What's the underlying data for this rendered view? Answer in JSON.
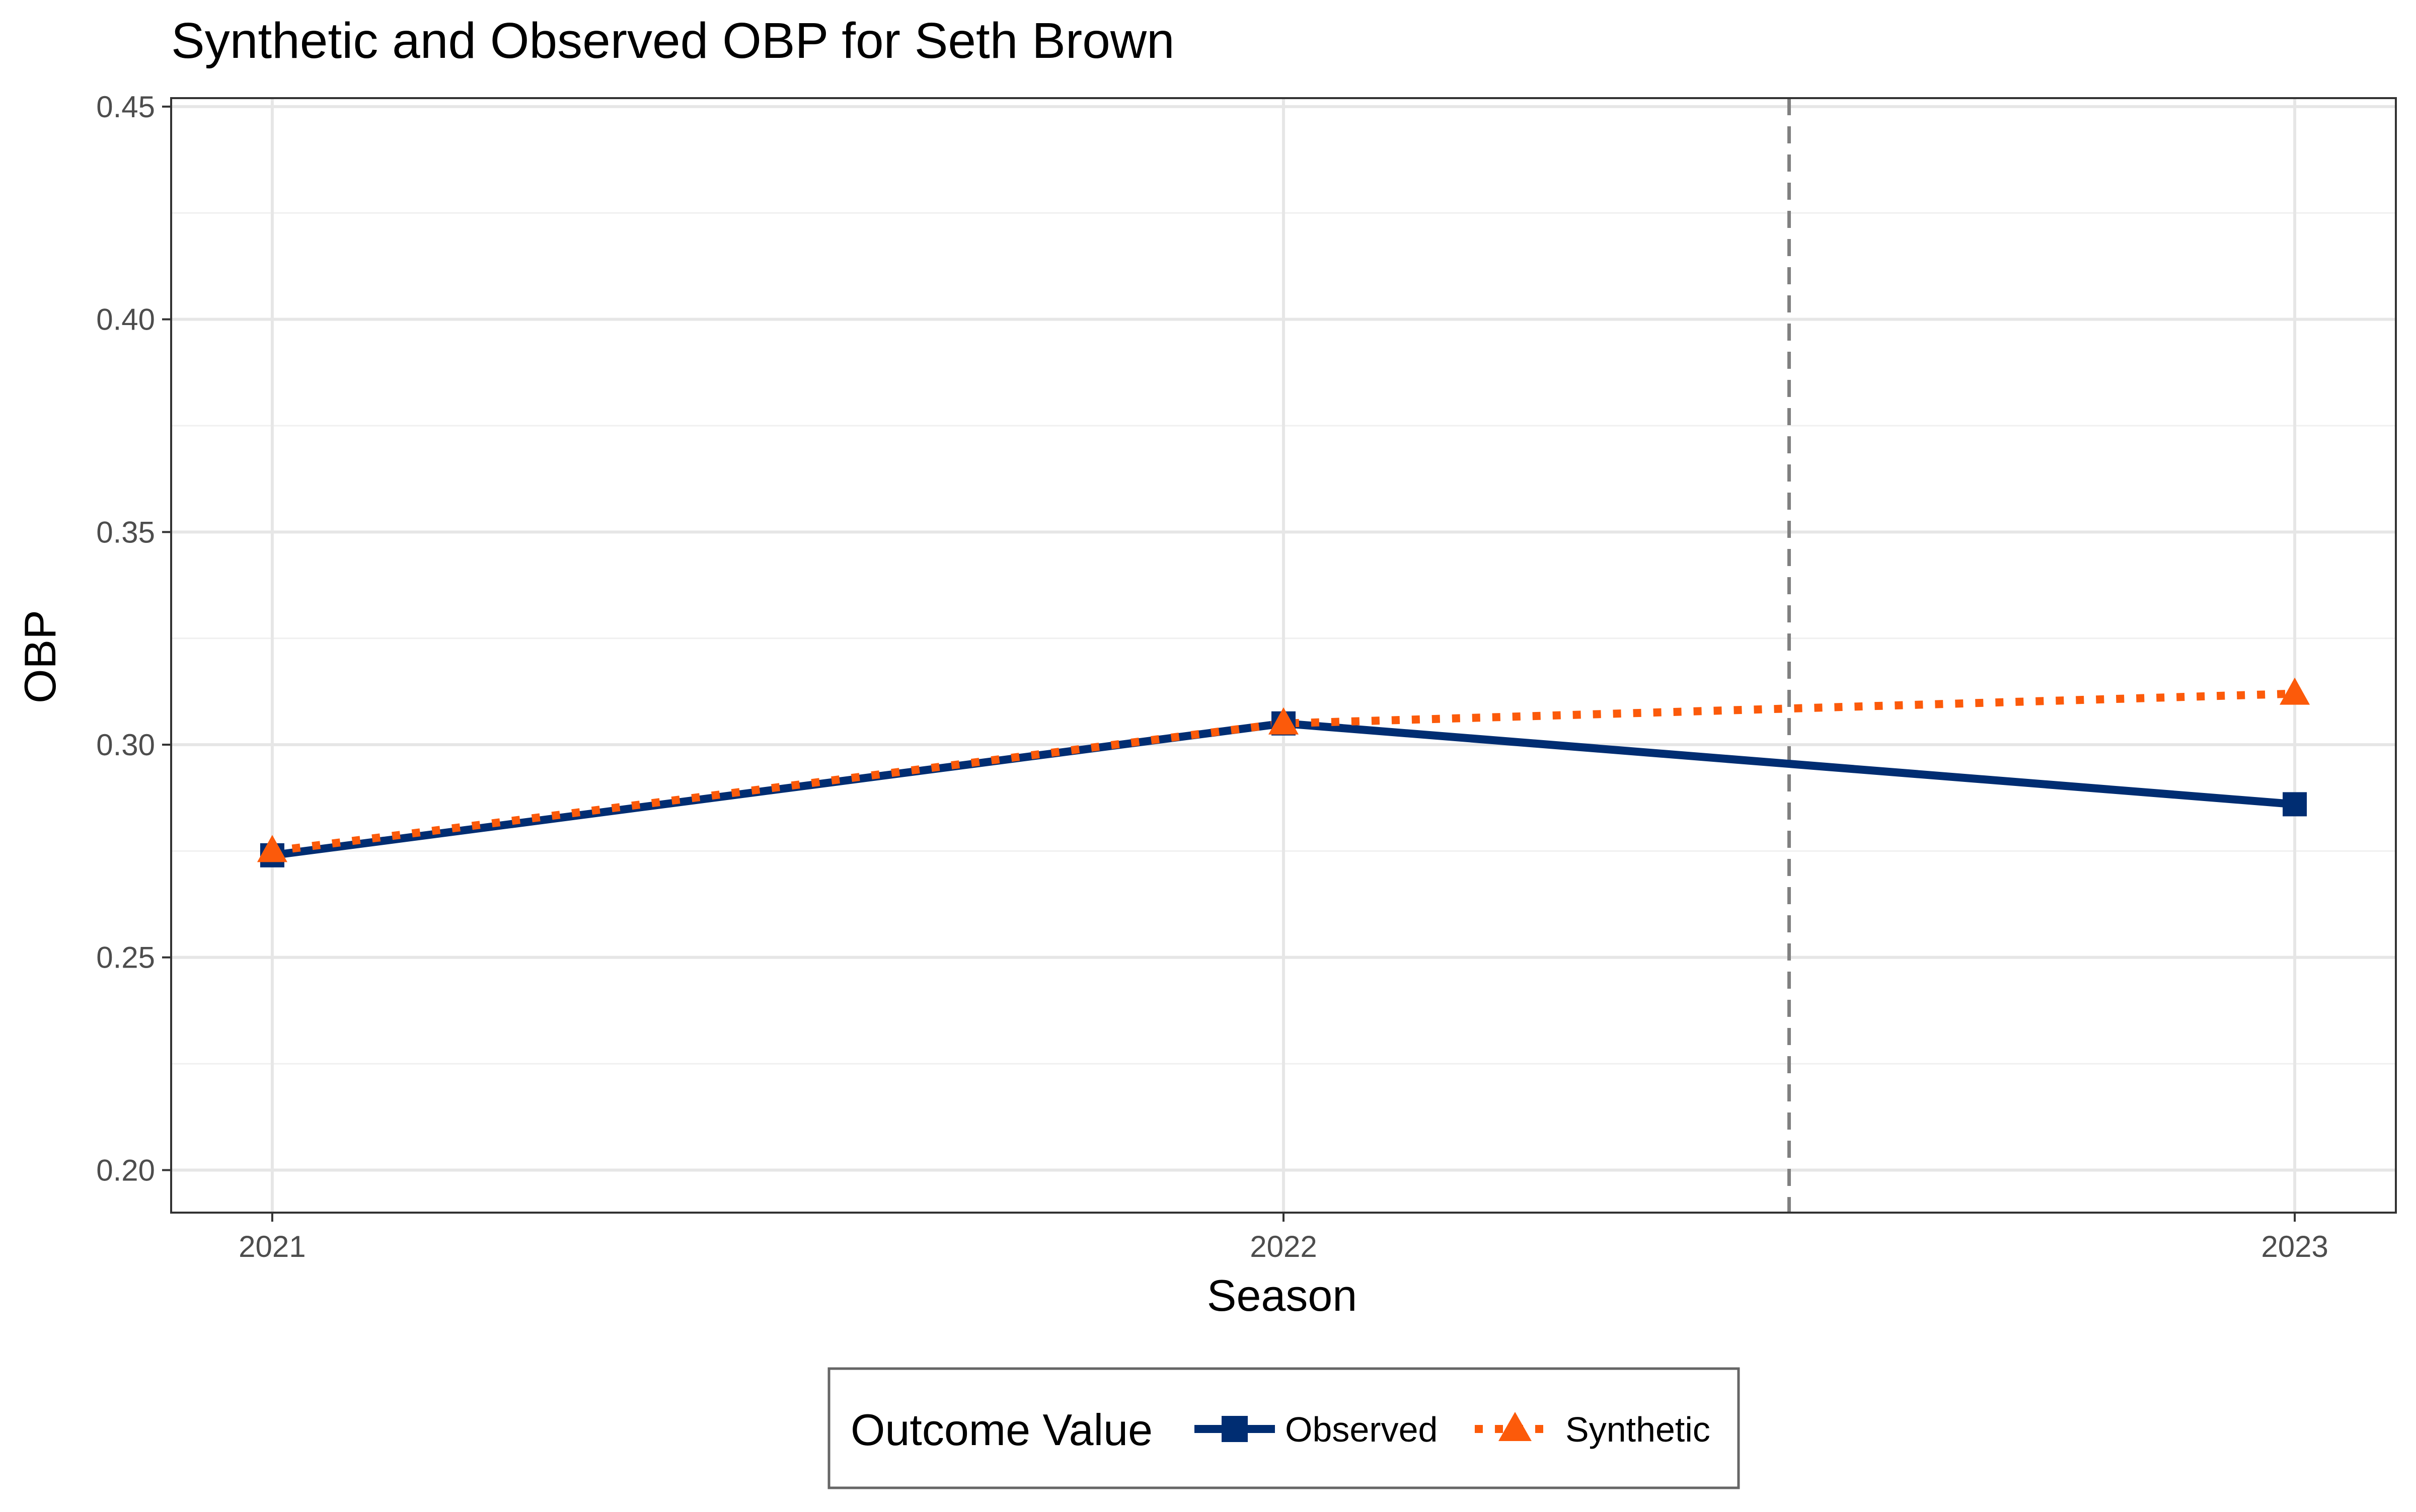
{
  "chart_data": {
    "type": "line",
    "title": "Synthetic and Observed OBP for Seth Brown",
    "xlabel": "Season",
    "ylabel": "OBP",
    "x": [
      2021,
      2022,
      2023
    ],
    "x_tick_labels": [
      "2021",
      "2022",
      "2023"
    ],
    "xlim": [
      2020.9,
      2023.1
    ],
    "ylim": [
      0.19,
      0.452
    ],
    "y_ticks": [
      0.2,
      0.25,
      0.3,
      0.35,
      0.4,
      0.45
    ],
    "y_tick_labels": [
      "0.20",
      "0.25",
      "0.30",
      "0.35",
      "0.40",
      "0.45"
    ],
    "grid": true,
    "treatment_line_x": 2022.5,
    "series": [
      {
        "name": "Observed",
        "values": [
          0.274,
          0.305,
          0.286
        ],
        "color": "#002d72",
        "linestyle": "solid",
        "marker": "square"
      },
      {
        "name": "Synthetic",
        "values": [
          0.275,
          0.305,
          0.312
        ],
        "color": "#fc5a0a",
        "linestyle": "dotted",
        "marker": "triangle"
      }
    ],
    "legend": {
      "title": "Outcome Value",
      "placement": "bottom"
    }
  }
}
